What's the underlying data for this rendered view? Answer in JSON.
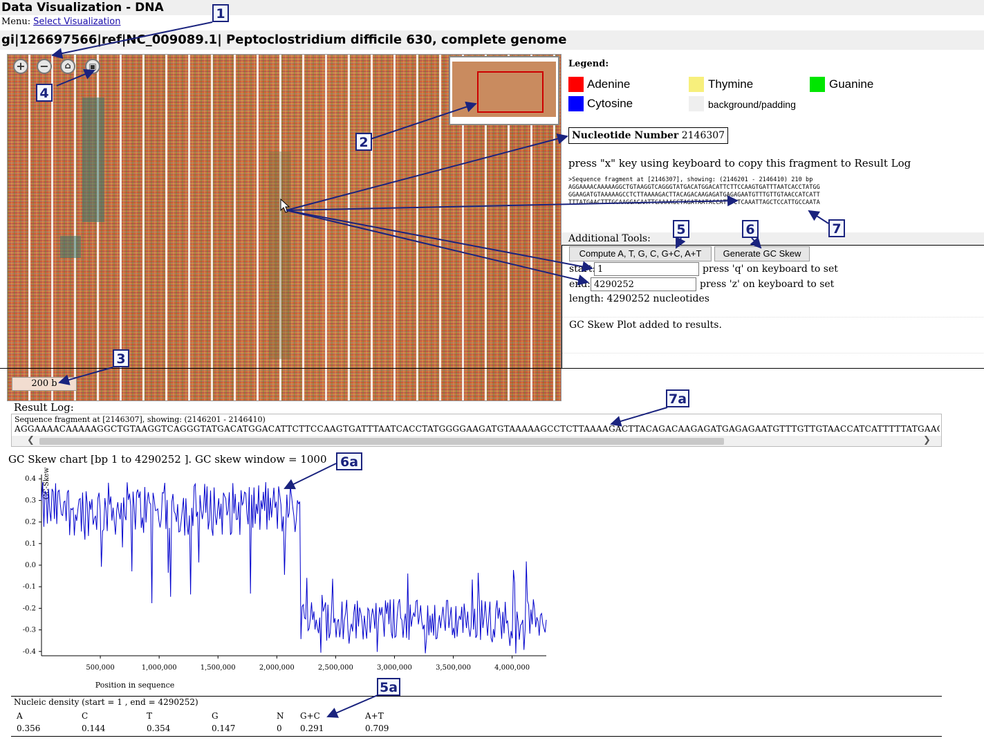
{
  "app_title": "Data Visualization - DNA",
  "menu": {
    "label": "Menu:",
    "link": "Select Visualization"
  },
  "genome_title": "gi|126697566|ref|NC_009089.1| Peptoclostridium difficile 630, complete genome",
  "viewer": {
    "zoom_in": "+",
    "zoom_out": "−",
    "home": "⌂",
    "fullscreen": "▣",
    "scale_label": "200 b",
    "icons": [
      "zoom-in-icon",
      "zoom-out-icon",
      "home-icon",
      "fullscreen-icon"
    ]
  },
  "legend": {
    "title": "Legend:",
    "items": [
      {
        "label": "Adenine",
        "color": "#ff0000"
      },
      {
        "label": "Thymine",
        "color": "#f7ef7c"
      },
      {
        "label": "Guanine",
        "color": "#00e600"
      },
      {
        "label": "Cytosine",
        "color": "#0000ff"
      },
      {
        "label": "background/padding",
        "color": "#efefef"
      }
    ]
  },
  "nucleotide": {
    "label": "Nucleotide Number",
    "value": "2146307"
  },
  "copy_hint": "press \"x\" key using keyboard to copy this fragment to Result Log",
  "fragment": {
    "header": ">Sequence fragment at [2146307], showing: (2146201 - 2146410) 210 bp",
    "lines": [
      "AGGAAAACAAAAAGGCTGTAAGGTCAGGGTATGACATGGACATTCTTCCAAGTGATTTAATCACCTATGG",
      "GGAAGATGTAAAAAGCCTCTTAAAAGACTTACAGACAAGAGATGAGAGAATGTTTGTTGTAACCATCATT",
      "TTTATGAACTTTGCAAGGACAATTCAAAAGCTAGATAATACCATTTCTCAAATTAGCTCCATTGCCAATA"
    ]
  },
  "tools": {
    "title": "Additional Tools:",
    "compute_button": "Compute A, T, G, C, G+C, A+T",
    "gc_skew_button": "Generate GC Skew",
    "start_label": "start:",
    "start_value": "1",
    "start_hint": "press 'q' on keyboard to set",
    "end_label": "end:",
    "end_value": "4290252",
    "end_hint": "press 'z' on keyboard to set",
    "length": "length: 4290252 nucleotides",
    "status": "GC Skew Plot added to results."
  },
  "result_log": {
    "label": "Result Log:",
    "fragment_header": "Sequence fragment at [2146307], showing: (2146201 - 2146410)",
    "sequence": "AGGAAAACAAAAAGGCTGTAAGGTCAGGGTATGACATGGACATTCTTCCAAGTGATTTAATCACCTATGGGGAAGATGTAAAAAGCCTCTTAAAAGACTTACAGACAAGAGATGAGAGAATGTTTGTTGTAACCATCATTTTTATGAACTTTGCAAGGACAAT",
    "scroll_left": "❮",
    "scroll_right": "❯"
  },
  "gc_chart_title": "GC Skew chart [bp 1 to 4290252 ]. GC skew window = 1000",
  "chart_data": {
    "type": "line",
    "ylabel": "GC-Skew",
    "xlabel": "Position in sequence",
    "xlim": [
      1,
      4290252
    ],
    "ylim": [
      -0.42,
      0.42
    ],
    "yticks": [
      "0.4",
      "0.3",
      "0.2",
      "0.1",
      "0.0",
      "-0.1",
      "-0.2",
      "-0.3",
      "-0.4"
    ],
    "xticks": [
      "500,000",
      "1,000,000",
      "1,500,000",
      "2,000,000",
      "2,500,000",
      "3,000,000",
      "3,500,000",
      "4,000,000"
    ],
    "xtick_values": [
      500000,
      1000000,
      1500000,
      2000000,
      2500000,
      3000000,
      3500000,
      4000000
    ],
    "line_color": "#0000cc",
    "segments": [
      {
        "x_start": 1,
        "x_end": 2200000,
        "mean": 0.26,
        "spread": 0.09,
        "min": -0.18,
        "max": 0.39
      },
      {
        "x_start": 2200000,
        "x_end": 4290252,
        "mean": -0.25,
        "spread": 0.07,
        "min": -0.42,
        "max": 0.1
      }
    ]
  },
  "density": {
    "title": "Nucleic density (start = 1 , end = 4290252)",
    "headers": [
      "A",
      "C",
      "T",
      "G",
      "N",
      "G+C",
      "A+T"
    ],
    "values": [
      "0.356",
      "0.144",
      "0.354",
      "0.147",
      "0",
      "0.291",
      "0.709"
    ]
  },
  "callouts": [
    "1",
    "2",
    "3",
    "4",
    "5",
    "6",
    "7",
    "7a",
    "6a",
    "5a"
  ]
}
